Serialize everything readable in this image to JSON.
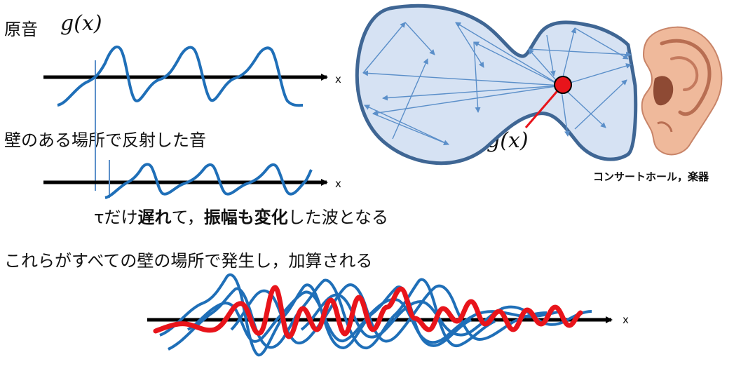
{
  "labels": {
    "original_sound": "原音",
    "g_x": "g(x)",
    "reflected": "壁のある場所で反射した音",
    "tau": "τ",
    "delay_prefix": "だけ",
    "delay_bold1": "遅れ",
    "delay_mid": "て，",
    "delay_bold2": "振幅も変化",
    "delay_suffix": "した波となる",
    "summation": "これらがすべての壁の場所で発生し，加算される",
    "hall_caption": "コンサートホール，楽器",
    "axis_x": "x"
  },
  "colors": {
    "wave_blue": "#1f6fb8",
    "source_red": "#e8141b",
    "hall_fill": "#d6e2f3",
    "hall_stroke": "#3f6694",
    "ray": "#5b8fc9",
    "axis": "#000000"
  }
}
